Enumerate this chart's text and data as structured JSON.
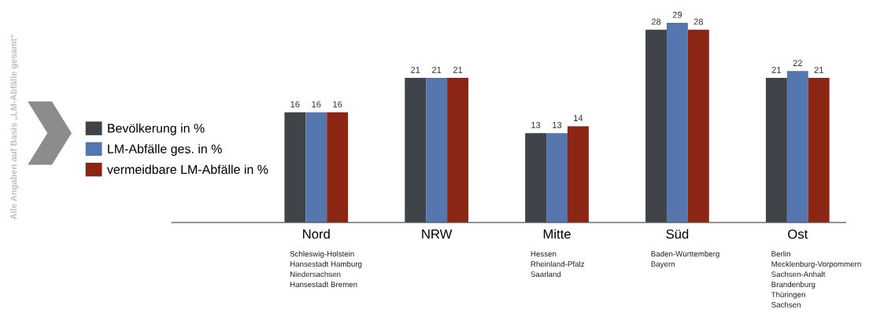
{
  "chart_data": {
    "type": "bar",
    "categories": [
      "Nord",
      "NRW",
      "Mitte",
      "Süd",
      "Ost"
    ],
    "series": [
      {
        "name": "Bevölkerung in %",
        "color": "#404347",
        "values": [
          16,
          21,
          13,
          28,
          21
        ]
      },
      {
        "name": "LM-Abfälle ges. in %",
        "color": "#5676b0",
        "values": [
          16,
          21,
          13,
          29,
          22
        ]
      },
      {
        "name": "vermeidbare LM-Abfälle in %",
        "color": "#8b2615",
        "values": [
          16,
          21,
          14,
          28,
          21
        ]
      }
    ],
    "data_labels": true,
    "legend": "left",
    "grid": false,
    "annotations": [
      "Alle Angaben auf Basis „LM-Abfälle gesamt“",
      "Schleswig-Holstein\nHansestadt Hamburg\nNiedersachsen\nHansestadt Bremen",
      "Hessen\nRheinland-Pfalz\nSaarland",
      "Baden-Württemberg\nBayern",
      "Berlin\nMecklenburg-Vorpommern\nSachsen-Anhalt\nBrandenburg\nThüringen\nSachsen"
    ]
  }
}
